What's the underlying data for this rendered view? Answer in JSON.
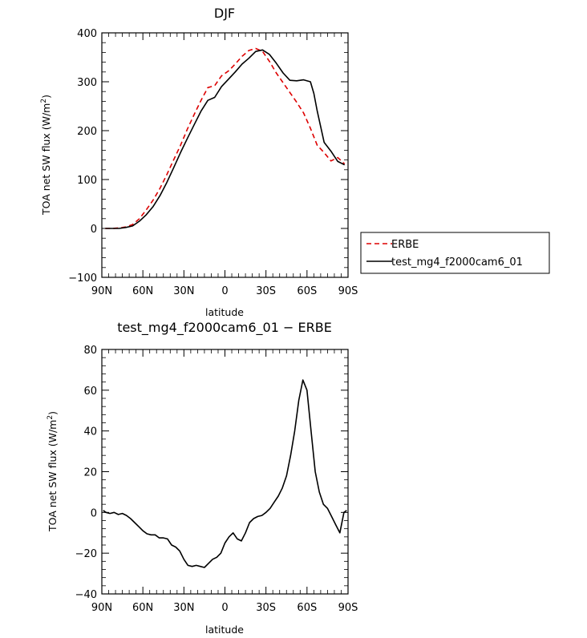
{
  "chart_data": [
    {
      "type": "line",
      "title": "DJF",
      "xlabel": "latitude",
      "ylabel": "TOA net SW flux (W/m²)",
      "ylabel_main": "TOA net SW flux (W/m",
      "ylabel_sup": "2",
      "ylabel_end": ")",
      "ylim": [
        -100,
        400
      ],
      "yticks": [
        -100,
        0,
        100,
        200,
        300,
        400
      ],
      "ytick_labels": [
        "−100",
        "0",
        "100",
        "200",
        "300",
        "400"
      ],
      "xlim": [
        -90,
        90
      ],
      "xticks": [
        -90,
        -60,
        -30,
        0,
        30,
        60,
        90
      ],
      "xtick_labels": [
        "90N",
        "60N",
        "30N",
        "0",
        "30S",
        "60S",
        "90S"
      ],
      "grid": false,
      "legend_position": "right",
      "series": [
        {
          "name": "ERBE",
          "color": "#dd0000",
          "dash": "dashed",
          "x": [
            -87.5,
            -82.5,
            -77.5,
            -72.5,
            -67.5,
            -62.5,
            -57.5,
            -52.5,
            -47.5,
            -42.5,
            -37.5,
            -32.5,
            -27.5,
            -22.5,
            -17.5,
            -12.5,
            -7.5,
            -2.5,
            2.5,
            7.5,
            12.5,
            17.5,
            22.5,
            27.5,
            32.5,
            37.5,
            42.5,
            47.5,
            52.5,
            57.5,
            62.5,
            67.5,
            72.5,
            77.5,
            82.5,
            87.5
          ],
          "y": [
            0,
            0,
            1,
            3,
            8,
            20,
            38,
            58,
            82,
            110,
            140,
            170,
            203,
            233,
            262,
            288,
            292,
            312,
            322,
            336,
            352,
            364,
            368,
            362,
            342,
            318,
            298,
            278,
            258,
            236,
            205,
            170,
            155,
            138,
            145,
            132
          ]
        },
        {
          "name": "test_mg4_f2000cam6_01",
          "color": "#000000",
          "dash": "solid",
          "x": [
            -87.5,
            -82.5,
            -77.5,
            -72.5,
            -67.5,
            -62.5,
            -57.5,
            -52.5,
            -47.5,
            -42.5,
            -37.5,
            -32.5,
            -27.5,
            -22.5,
            -17.5,
            -12.5,
            -7.5,
            -2.5,
            2.5,
            7.5,
            12.5,
            17.5,
            22.5,
            27.5,
            32.5,
            37.5,
            42.5,
            47.5,
            52.5,
            57.5,
            62.5,
            65.0,
            67.5,
            72.5,
            77.5,
            82.5,
            87.5
          ],
          "y": [
            0,
            0,
            0,
            2,
            5,
            15,
            28,
            45,
            67,
            94,
            124,
            155,
            184,
            212,
            240,
            262,
            268,
            290,
            305,
            320,
            336,
            348,
            362,
            365,
            356,
            338,
            318,
            303,
            302,
            304,
            300,
            276,
            240,
            176,
            158,
            137,
            130
          ]
        }
      ]
    },
    {
      "type": "line",
      "title": "test_mg4_f2000cam6_01 − ERBE",
      "xlabel": "latitude",
      "ylabel": "TOA net SW flux (W/m²)",
      "ylabel_main": "TOA net SW flux (W/m",
      "ylabel_sup": "2",
      "ylabel_end": ")",
      "ylim": [
        -40,
        80
      ],
      "yticks": [
        -40,
        -20,
        0,
        20,
        40,
        60,
        80
      ],
      "ytick_labels": [
        "−40",
        "−20",
        "0",
        "20",
        "40",
        "60",
        "80"
      ],
      "xlim": [
        -90,
        90
      ],
      "xticks": [
        -90,
        -60,
        -30,
        0,
        30,
        60,
        90
      ],
      "xtick_labels": [
        "90N",
        "60N",
        "30N",
        "0",
        "30S",
        "60S",
        "90S"
      ],
      "grid": false,
      "series": [
        {
          "color": "#000000",
          "dash": "solid",
          "x": [
            -89,
            -87,
            -84,
            -81,
            -78,
            -75,
            -72,
            -69,
            -66,
            -63,
            -60,
            -57,
            -54,
            -51,
            -48,
            -45,
            -42,
            -39,
            -36,
            -33,
            -30,
            -27,
            -24,
            -21,
            -18,
            -15,
            -12,
            -9,
            -6,
            -3,
            0,
            3,
            6,
            9,
            12,
            15,
            18,
            21,
            24,
            27,
            30,
            33,
            36,
            39,
            42,
            45,
            48,
            51,
            54,
            57,
            60,
            63,
            66,
            69,
            72,
            75,
            78,
            81,
            84,
            87,
            89
          ],
          "y": [
            1,
            0,
            -0.5,
            0,
            -1,
            -0.5,
            -1.5,
            -3,
            -5,
            -7,
            -9,
            -10.5,
            -11,
            -11,
            -12.5,
            -12.5,
            -13,
            -16,
            -17,
            -19,
            -23,
            -26,
            -26.5,
            -26,
            -26.5,
            -27,
            -25,
            -23,
            -22,
            -20,
            -15,
            -12,
            -10,
            -13,
            -14,
            -10,
            -5,
            -3,
            -2,
            -1.5,
            0,
            2,
            5,
            8,
            12,
            18,
            28,
            40,
            55,
            65,
            60,
            40,
            20,
            10,
            4,
            2,
            -2,
            -6,
            -10,
            0,
            1
          ]
        }
      ]
    }
  ]
}
